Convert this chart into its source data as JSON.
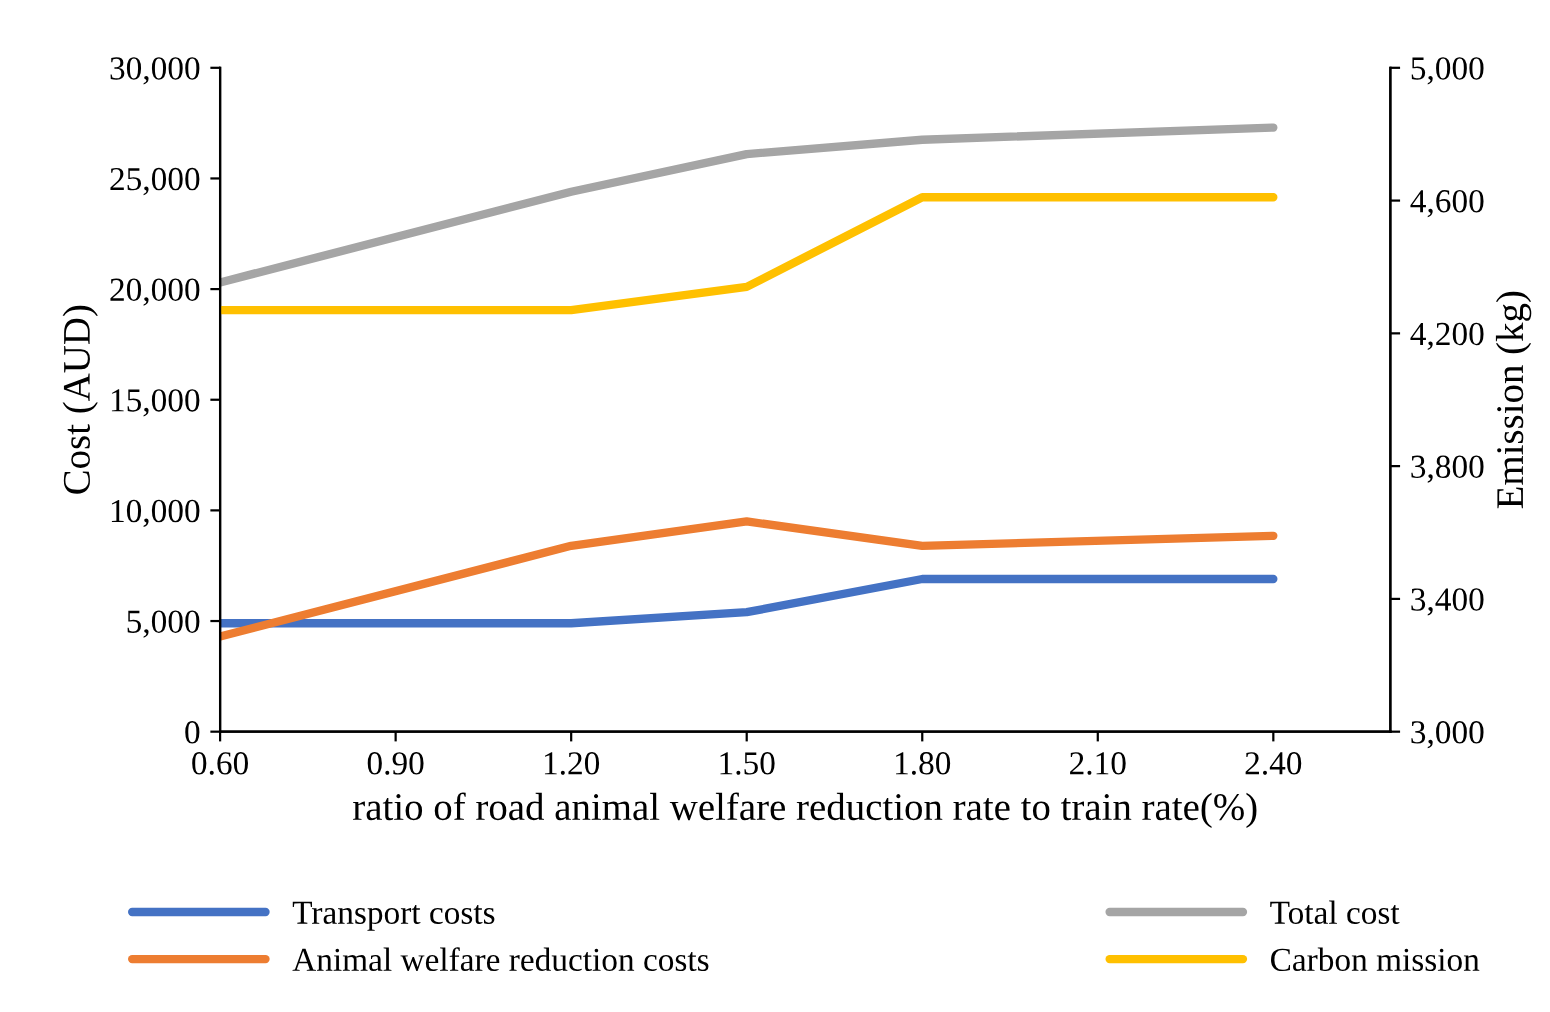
{
  "chart_data": {
    "type": "line",
    "xlabel": "ratio of road animal welfare reduction rate to train rate(%)",
    "ylabel": "Cost (AUD)",
    "y2label": "Emission (kg)",
    "xlim": [
      0.6,
      2.6
    ],
    "xticks": [
      {
        "value": 0.6,
        "label": "0.60"
      },
      {
        "value": 0.9,
        "label": "0.90"
      },
      {
        "value": 1.2,
        "label": "1.20"
      },
      {
        "value": 1.5,
        "label": "1.50"
      },
      {
        "value": 1.8,
        "label": "1.80"
      },
      {
        "value": 2.1,
        "label": "2.10"
      },
      {
        "value": 2.4,
        "label": "2.40"
      }
    ],
    "ylim": [
      0,
      30000
    ],
    "yticks": [
      {
        "value": 0,
        "label": "0"
      },
      {
        "value": 5000,
        "label": "5,000"
      },
      {
        "value": 10000,
        "label": "10,000"
      },
      {
        "value": 15000,
        "label": "15,000"
      },
      {
        "value": 20000,
        "label": "20,000"
      },
      {
        "value": 25000,
        "label": "25,000"
      },
      {
        "value": 30000,
        "label": "30,000"
      }
    ],
    "y2lim": [
      3000,
      5000
    ],
    "y2ticks": [
      {
        "value": 3000,
        "label": "3,000"
      },
      {
        "value": 3400,
        "label": "3,400"
      },
      {
        "value": 3800,
        "label": "3,800"
      },
      {
        "value": 4200,
        "label": "4,200"
      },
      {
        "value": 4600,
        "label": "4,600"
      },
      {
        "value": 5000,
        "label": "5,000"
      }
    ],
    "x": [
      0.6,
      1.2,
      1.5,
      1.8,
      2.4
    ],
    "series": [
      {
        "name": "Transport costs",
        "color": "#4472c4",
        "values": [
          4900,
          4900,
          5400,
          6900,
          6900
        ]
      },
      {
        "name": "Animal welfare reduction costs",
        "color": "#ed7d31",
        "values": [
          4300,
          8400,
          9500,
          8400,
          8850
        ]
      },
      {
        "name": "Total cost",
        "color": "#a5a5a5",
        "values": [
          20300,
          24400,
          26100,
          26750,
          27300
        ]
      },
      {
        "name": "Carbon mission",
        "color": "#ffc000",
        "axis": "y2",
        "values": [
          4270,
          4270,
          4340,
          4610,
          4610
        ]
      }
    ],
    "legend": "bottom",
    "grid": false,
    "marker": "none",
    "line_style": "solid"
  }
}
